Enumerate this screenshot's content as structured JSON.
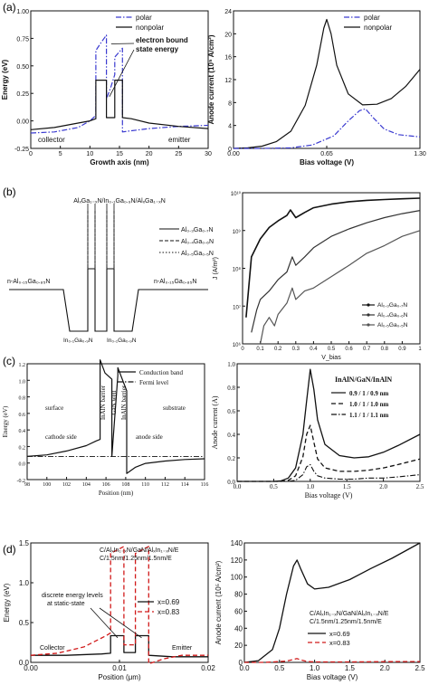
{
  "panels": {
    "a": {
      "label": "(a)"
    },
    "b": {
      "label": "(b)"
    },
    "c": {
      "label": "(c)"
    },
    "d": {
      "label": "(d)"
    }
  },
  "chart_data": [
    {
      "id": "a-left",
      "type": "line",
      "xlabel": "Growth axis (nm)",
      "ylabel": "Energy (eV)",
      "xlim": [
        0,
        30
      ],
      "ylim": [
        -0.25,
        1.0
      ],
      "xticks": [
        "0",
        "5",
        "10",
        "15",
        "20",
        "25",
        "30"
      ],
      "yticks": [
        "-0.25",
        "0.00",
        "0.25",
        "0.50",
        "0.75",
        "1.00"
      ],
      "legend": {
        "position": "top-right",
        "entries": [
          "polar",
          "nonpolar"
        ]
      },
      "annotations": [
        "electron bound state energy",
        "collector",
        "emitter"
      ],
      "series": [
        {
          "name": "polar",
          "style": "dash-dot",
          "color": "#3a3ad0",
          "x": [
            0,
            4,
            8,
            10,
            11,
            11,
            12,
            12.8,
            12.8,
            13.5,
            14.2,
            14.2,
            15.5,
            15.5,
            17,
            20,
            25,
            30
          ],
          "y": [
            -0.11,
            -0.1,
            -0.06,
            0.0,
            0.05,
            0.64,
            0.72,
            0.78,
            0.2,
            0.3,
            0.42,
            0.58,
            0.66,
            -0.1,
            -0.09,
            -0.07,
            -0.05,
            -0.04
          ]
        },
        {
          "name": "nonpolar",
          "style": "solid",
          "color": "#111111",
          "x": [
            0,
            4,
            8,
            10,
            11,
            11,
            12.8,
            12.8,
            14.2,
            14.2,
            15.5,
            15.5,
            17,
            20,
            25,
            30
          ],
          "y": [
            -0.08,
            -0.06,
            -0.02,
            0.0,
            0.02,
            0.37,
            0.37,
            0.03,
            0.03,
            0.37,
            0.37,
            0.03,
            0.02,
            -0.02,
            -0.05,
            -0.07
          ]
        }
      ]
    },
    {
      "id": "a-right",
      "type": "line",
      "xlabel": "Bias voltage (V)",
      "ylabel": "Anode current (10⁵ A/cm²)",
      "xlim": [
        0,
        1.3
      ],
      "ylim": [
        0,
        24
      ],
      "xticks": [
        "0.00",
        "0.65",
        "1.30"
      ],
      "yticks": [
        "0",
        "4",
        "8",
        "12",
        "16",
        "20",
        "24"
      ],
      "legend": {
        "position": "top-right",
        "entries": [
          "polar",
          "nonpolar"
        ]
      },
      "series": [
        {
          "name": "nonpolar",
          "style": "solid",
          "color": "#111111",
          "x": [
            0,
            0.1,
            0.2,
            0.3,
            0.4,
            0.5,
            0.58,
            0.63,
            0.65,
            0.68,
            0.72,
            0.8,
            0.9,
            1.0,
            1.1,
            1.2,
            1.3
          ],
          "y": [
            0,
            0.1,
            0.4,
            1.2,
            3.0,
            7.5,
            14.5,
            21.0,
            22.5,
            20.0,
            14.5,
            9.5,
            7.6,
            7.7,
            8.7,
            10.8,
            13.8
          ]
        },
        {
          "name": "polar",
          "style": "dash-dot",
          "color": "#3a3ad0",
          "x": [
            0,
            0.2,
            0.4,
            0.55,
            0.7,
            0.8,
            0.88,
            0.92,
            0.98,
            1.05,
            1.15,
            1.3
          ],
          "y": [
            0,
            0,
            0.1,
            0.6,
            2.2,
            4.8,
            6.6,
            6.9,
            5.2,
            3.4,
            2.4,
            2.0
          ]
        }
      ]
    },
    {
      "id": "b-left",
      "type": "line",
      "title": "AlₓGa₁₋ₓN/In₀.₁Ga₀.₉N/AlₓGa₁₋ₓN",
      "legend": {
        "position": "top-right",
        "entries": [
          "Al₀.₃Ga₀.₇N",
          "Al₀.₄Ga₀.₆N",
          "Al₀.₅Ga₀.₅N"
        ]
      },
      "annotations": [
        "n-Al₀.₁₅Ga₀.₈₅N",
        "n-Al₀.₁₅Ga₀.₈₅N",
        "In₀.₁Ga₀.₉N",
        "In₀.₁Ga₀.₉N"
      ]
    },
    {
      "id": "b-right",
      "type": "line",
      "xlabel": "V_bias",
      "ylabel": "J (A/m²)",
      "xlim": [
        0,
        1.0
      ],
      "yscale": "log",
      "ylim": [
        1000000.0,
        10000000000.0
      ],
      "xticks": [
        "0",
        "0.1",
        "0.2",
        "0.3",
        "0.4",
        "0.5",
        "0.6",
        "0.7",
        "0.8",
        "0.9",
        "1"
      ],
      "yticks": [
        "10⁶",
        "10⁷",
        "10⁸",
        "10⁹",
        "10¹⁰"
      ],
      "legend": {
        "position": "bottom-right",
        "entries": [
          "Al₀.₃Ga₀.₇N",
          "Al₀.₄Ga₀.₆N",
          "Al₀.₅Ga₀.₅N"
        ]
      },
      "series": [
        {
          "name": "Al₀.₃Ga₀.₇N",
          "x": [
            0.02,
            0.05,
            0.1,
            0.15,
            0.2,
            0.25,
            0.27,
            0.3,
            0.35,
            0.4,
            0.5,
            0.6,
            0.7,
            0.8,
            0.9,
            1.0
          ],
          "y": [
            5000000.0,
            200000000.0,
            600000000.0,
            1200000000.0,
            1800000000.0,
            2500000000.0,
            3500000000.0,
            2200000000.0,
            3000000000.0,
            4000000000.0,
            5000000000.0,
            5800000000.0,
            6300000000.0,
            6600000000.0,
            6900000000.0,
            7200000000.0
          ]
        },
        {
          "name": "Al₀.₄Ga₀.₆N",
          "x": [
            0.05,
            0.08,
            0.1,
            0.15,
            0.2,
            0.25,
            0.28,
            0.3,
            0.35,
            0.4,
            0.5,
            0.6,
            0.7,
            0.8,
            0.9,
            1.0
          ],
          "y": [
            2000000.0,
            8000000.0,
            15000000.0,
            25000000.0,
            50000000.0,
            80000000.0,
            200000000.0,
            120000000.0,
            200000000.0,
            350000000.0,
            700000000.0,
            1100000000.0,
            1600000000.0,
            2200000000.0,
            2800000000.0,
            3400000000.0
          ]
        },
        {
          "name": "Al₀.₅Ga₀.₅N",
          "x": [
            0.1,
            0.12,
            0.15,
            0.18,
            0.2,
            0.25,
            0.28,
            0.3,
            0.35,
            0.4,
            0.5,
            0.6,
            0.7,
            0.8,
            0.9,
            1.0
          ],
          "y": [
            1000000.0,
            3000000.0,
            5000000.0,
            3000000.0,
            6000000.0,
            12000000.0,
            30000000.0,
            15000000.0,
            25000000.0,
            30000000.0,
            60000000.0,
            120000000.0,
            250000000.0,
            400000000.0,
            700000000.0,
            1000000000.0
          ]
        }
      ]
    },
    {
      "id": "c-left",
      "type": "line",
      "xlabel": "Position (nm)",
      "ylabel": "Energy (eV)",
      "xlim": [
        98,
        116
      ],
      "ylim": [
        -0.3,
        1.2
      ],
      "xticks": [
        "98",
        "100",
        "102",
        "104",
        "106",
        "108",
        "110",
        "112",
        "114",
        "116"
      ],
      "yticks": [
        "-0.2",
        "0.0",
        "0.2",
        "0.4",
        "0.6",
        "0.8",
        "1.0",
        "1.2"
      ],
      "legend": {
        "position": "top-right",
        "entries": [
          "Conduction band",
          "Fermi level"
        ]
      },
      "annotations": [
        "surface",
        "substrate",
        "cathode side",
        "anode side",
        "InAlN barrier",
        "GaN well",
        "InAlN barrier"
      ],
      "series": [
        {
          "name": "Conduction band",
          "style": "solid",
          "x": [
            98,
            100,
            102,
            104,
            105,
            105.4,
            105.4,
            105.9,
            106.6,
            106.6,
            107.2,
            107.2,
            108.1,
            108.1,
            109,
            110,
            112,
            114,
            116
          ],
          "y": [
            0.0,
            0.02,
            0.07,
            0.14,
            0.2,
            0.22,
            1.25,
            1.08,
            1.0,
            0.0,
            1.05,
            1.15,
            0.85,
            -0.22,
            -0.14,
            -0.09,
            -0.06,
            -0.04,
            -0.03
          ]
        },
        {
          "name": "Fermi level",
          "style": "dash-dot",
          "x": [
            98,
            116
          ],
          "y": [
            0.0,
            0.0
          ]
        }
      ]
    },
    {
      "id": "c-right",
      "type": "line",
      "xlabel": "Bias voltage (V)",
      "ylabel": "Anode current (A)",
      "xlim": [
        0,
        2.5
      ],
      "ylim": [
        0,
        1.05
      ],
      "xticks": [
        "0.0",
        "0.5",
        "1.0",
        "1.5",
        "2.0",
        "2.5"
      ],
      "yticks": [
        "0.0",
        "0.2",
        "0.4",
        "0.6",
        "0.8",
        "1.0"
      ],
      "legend": {
        "position": "top-right",
        "title": "InAlN/GaN/InAlN",
        "entries": [
          "0.9 / 1 / 0.9 nm",
          "1.0 / 1 / 1.0 nm",
          "1.1 / 1 / 1.1 nm"
        ]
      },
      "series": [
        {
          "name": "0.9 / 1 / 0.9 nm",
          "style": "solid",
          "x": [
            0,
            0.5,
            0.6,
            0.7,
            0.8,
            0.9,
            0.95,
            1.0,
            1.05,
            1.1,
            1.2,
            1.4,
            1.6,
            1.8,
            2.0,
            2.2,
            2.5
          ],
          "y": [
            0,
            0,
            0.005,
            0.03,
            0.12,
            0.42,
            0.72,
            1.0,
            0.82,
            0.55,
            0.33,
            0.23,
            0.21,
            0.22,
            0.26,
            0.32,
            0.42
          ]
        },
        {
          "name": "1.0 / 1 / 1.0 nm",
          "style": "dash",
          "x": [
            0,
            0.6,
            0.7,
            0.8,
            0.9,
            0.95,
            1.0,
            1.05,
            1.1,
            1.2,
            1.4,
            1.6,
            1.8,
            2.0,
            2.2,
            2.5
          ],
          "y": [
            0,
            0,
            0.01,
            0.05,
            0.22,
            0.42,
            0.5,
            0.35,
            0.2,
            0.12,
            0.09,
            0.09,
            0.1,
            0.12,
            0.15,
            0.2
          ]
        },
        {
          "name": "1.1 / 1 / 1.1 nm",
          "style": "dash-dot",
          "x": [
            0,
            0.7,
            0.8,
            0.9,
            0.95,
            1.0,
            1.05,
            1.1,
            1.2,
            1.4,
            1.6,
            1.8,
            2.0,
            2.2,
            2.5
          ],
          "y": [
            0,
            0,
            0.01,
            0.06,
            0.13,
            0.15,
            0.09,
            0.05,
            0.03,
            0.02,
            0.02,
            0.03,
            0.03,
            0.04,
            0.06
          ]
        }
      ]
    },
    {
      "id": "d-left",
      "type": "line",
      "xlabel": "Position (μm)",
      "ylabel": "Energy (eV)",
      "xlim": [
        0,
        0.02
      ],
      "ylim": [
        -0.1,
        1.6
      ],
      "xticks": [
        "0.00",
        "0.01",
        "0.02"
      ],
      "yticks": [
        "0.0",
        "0.5",
        "1.0",
        "1.5"
      ],
      "title": "C/AlₓIn₁₋ₓN/GaN/AlₓIn₁₋ₓN/E\nC/1.5nm/1.25nm/1.5nm/E",
      "legend": {
        "position": "right",
        "entries": [
          "x=0.69",
          "x=0.83"
        ]
      },
      "annotations": [
        "discrete energy levels at static-state",
        "Collector",
        "Emitter"
      ],
      "series": [
        {
          "name": "x=0.69",
          "style": "solid",
          "color": "#111111",
          "x": [
            0,
            0.004,
            0.008,
            0.009,
            0.009,
            0.0105,
            0.0105,
            0.0118,
            0.0118,
            0.0133,
            0.0133,
            0.016,
            0.02
          ],
          "y": [
            0.0,
            0.0,
            0.02,
            0.03,
            0.28,
            0.28,
            0.04,
            0.04,
            0.28,
            0.28,
            0.0,
            -0.02,
            -0.02
          ]
        },
        {
          "name": "x=0.83",
          "style": "dash",
          "color": "#d11a1a",
          "x": [
            0,
            0.003,
            0.006,
            0.0085,
            0.009,
            0.009,
            0.0105,
            0.0105,
            0.0118,
            0.0118,
            0.0133,
            0.0133,
            0.015,
            0.017,
            0.02
          ],
          "y": [
            0.0,
            0.03,
            0.12,
            0.28,
            0.32,
            1.45,
            1.55,
            0.15,
            0.15,
            1.45,
            1.55,
            -0.12,
            -0.05,
            0.0,
            0.0
          ]
        }
      ]
    },
    {
      "id": "d-right",
      "type": "line",
      "xlabel": "Bias voltage (V)",
      "ylabel": "Anode current (10⁵ A/cm²)",
      "xlim": [
        0,
        2.5
      ],
      "ylim": [
        0,
        140
      ],
      "xticks": [
        "0.0",
        "0.5",
        "1.0",
        "1.5",
        "2.0",
        "2.5"
      ],
      "yticks": [
        "0",
        "20",
        "40",
        "60",
        "80",
        "100",
        "120",
        "140"
      ],
      "title": "C/AlₓIn₁₋ₓN/GaN/AlₓIn₁₋ₓN/E\nC/1.5nm/1.25nm/1.5nm/E",
      "legend": {
        "position": "bottom-right",
        "entries": [
          "x=0.69",
          "x=0.83"
        ]
      },
      "series": [
        {
          "name": "x=0.69",
          "style": "solid",
          "color": "#111111",
          "x": [
            0,
            0.2,
            0.4,
            0.5,
            0.6,
            0.7,
            0.75,
            0.8,
            0.9,
            1.0,
            1.2,
            1.5,
            1.8,
            2.1,
            2.5
          ],
          "y": [
            0,
            2,
            15,
            40,
            80,
            113,
            120,
            110,
            92,
            86,
            88,
            97,
            110,
            122,
            140
          ]
        },
        {
          "name": "x=0.83",
          "style": "dash",
          "color": "#d11a1a",
          "x": [
            0,
            0.3,
            0.6,
            0.7,
            0.75,
            0.8,
            0.9,
            1.0,
            1.5,
            2.0,
            2.5
          ],
          "y": [
            0,
            0,
            1.5,
            3.5,
            4.5,
            3.0,
            1.0,
            0.5,
            0.5,
            0.8,
            1.0
          ]
        }
      ]
    }
  ]
}
